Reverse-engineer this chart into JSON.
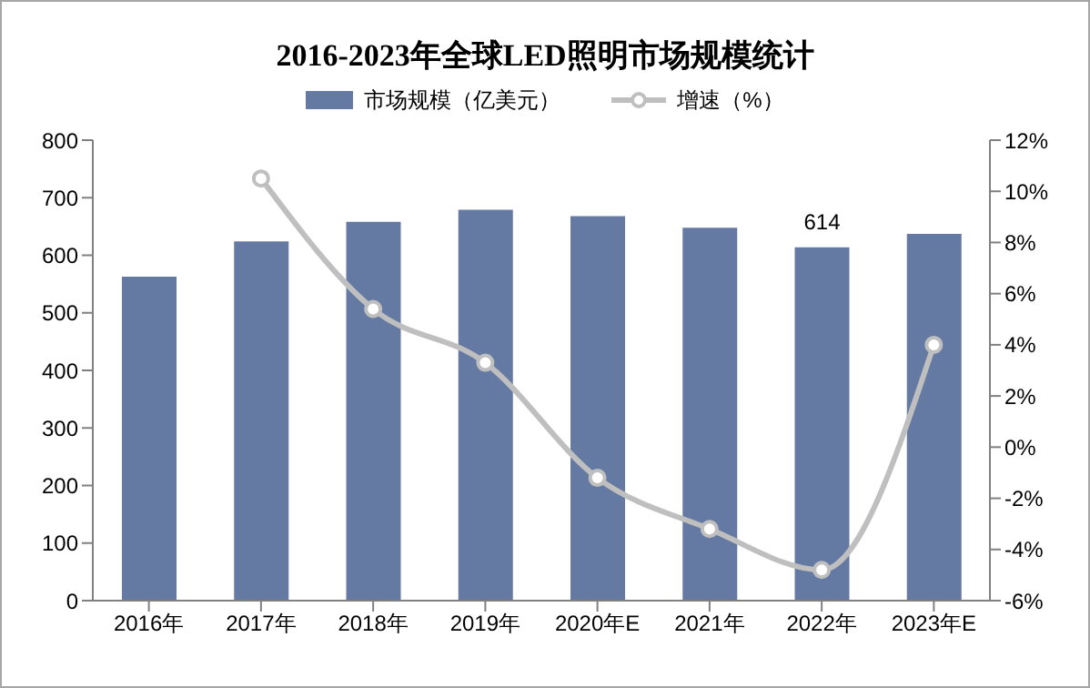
{
  "chart_data": {
    "type": "bar",
    "title": "2016-2023年全球LED照明市场规模统计",
    "categories": [
      "2016年",
      "2017年",
      "2018年",
      "2019年",
      "2020年E",
      "2021年",
      "2022年",
      "2023年E"
    ],
    "series": [
      {
        "name": "市场规模（亿美元）",
        "color": "#647aa2",
        "values": [
          563,
          624,
          658,
          679,
          668,
          648,
          614,
          637
        ],
        "value_labels": [
          null,
          null,
          null,
          null,
          null,
          null,
          "614",
          null
        ]
      },
      {
        "name": "增速（%）",
        "type": "line",
        "axis": "y2",
        "color": "#bfbfbf",
        "marker": "circle",
        "values": [
          null,
          10.5,
          5.4,
          3.3,
          -1.2,
          -3.2,
          -4.8,
          4.0
        ]
      }
    ],
    "ylim": [
      0,
      800
    ],
    "yticks": [
      0,
      100,
      200,
      300,
      400,
      500,
      600,
      700,
      800
    ],
    "y2lim": [
      -6,
      12
    ],
    "y2ticks": [
      {
        "value": -6,
        "label": "-6%"
      },
      {
        "value": -4,
        "label": "-4%"
      },
      {
        "value": -2,
        "label": "-2%"
      },
      {
        "value": 0,
        "label": "0%"
      },
      {
        "value": 2,
        "label": "2%"
      },
      {
        "value": 4,
        "label": "4%"
      },
      {
        "value": 6,
        "label": "6%"
      },
      {
        "value": 8,
        "label": "8%"
      },
      {
        "value": 10,
        "label": "10%"
      },
      {
        "value": 12,
        "label": "12%"
      }
    ],
    "grid": false,
    "legend": "top"
  }
}
